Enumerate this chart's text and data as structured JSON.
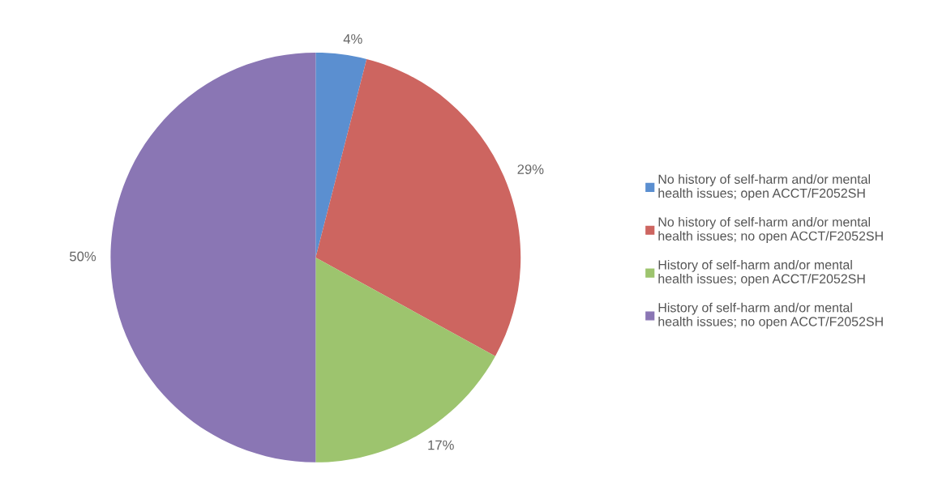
{
  "chart_data": {
    "type": "pie",
    "categories": [
      "No history of self-harm and/or mental health issues; open ACCT/F2052SH",
      "No history of self-harm and/or mental health issues; no open ACCT/F2052SH",
      "History of self-harm and/or mental health issues; open ACCT/F2052SH",
      "History of self-harm and/or mental health issues; no open ACCT/F2052SH"
    ],
    "values": [
      4,
      29,
      17,
      50
    ],
    "value_labels": [
      "4%",
      "29%",
      "17%",
      "50%"
    ],
    "colors": [
      "#5b8fd0",
      "#cd6560",
      "#9dc46e",
      "#8a76b4"
    ],
    "legend": "right"
  }
}
